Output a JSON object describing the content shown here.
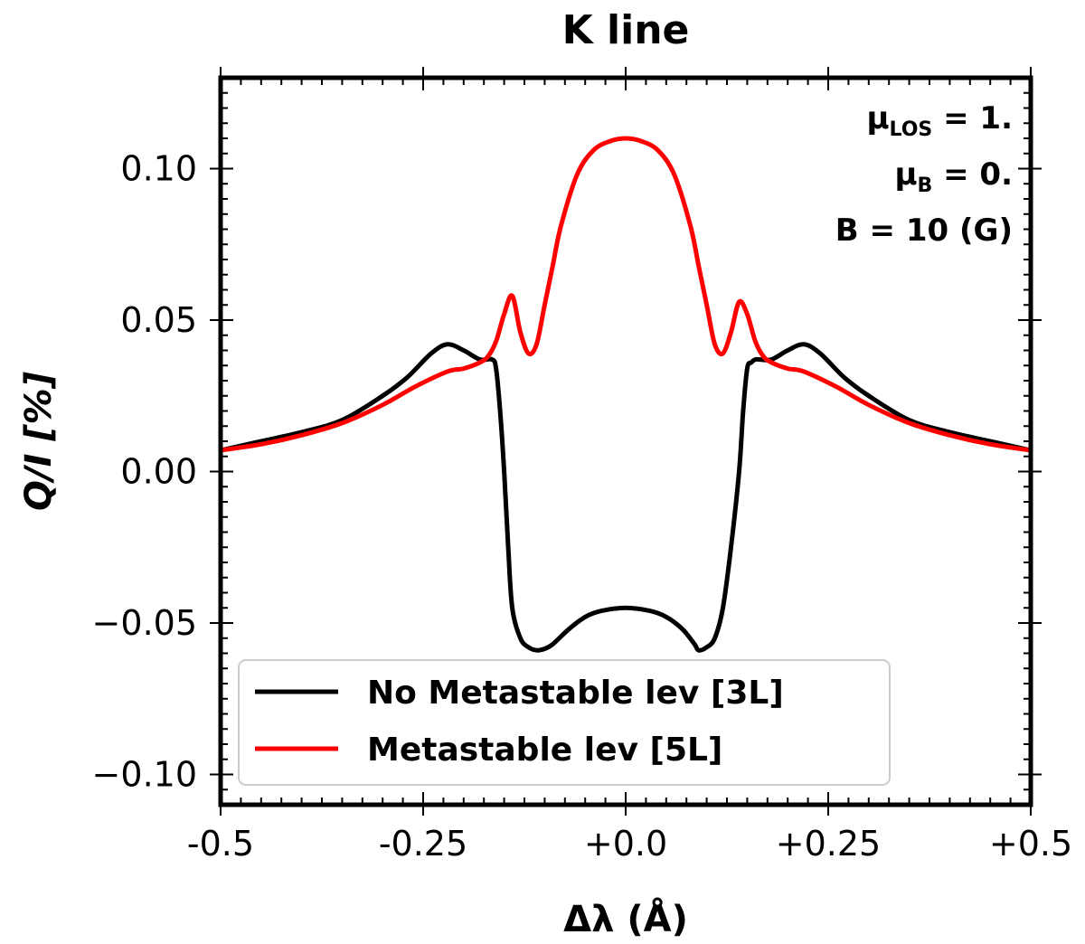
{
  "chart_data": {
    "type": "line",
    "title": "K line",
    "xlabel": "Δλ (Å)",
    "ylabel": "Q/I [%]",
    "xlim": [
      -0.5,
      0.5
    ],
    "ylim": [
      -0.11,
      0.13
    ],
    "x_ticks": [
      {
        "value": -0.5,
        "label": "-0.5"
      },
      {
        "value": -0.25,
        "label": "-0.25"
      },
      {
        "value": 0.0,
        "label": "+0.0"
      },
      {
        "value": 0.25,
        "label": "+0.25"
      },
      {
        "value": 0.5,
        "label": "+0.5"
      }
    ],
    "y_ticks": [
      {
        "value": 0.1,
        "label": "0.10"
      },
      {
        "value": 0.05,
        "label": "0.05"
      },
      {
        "value": 0.0,
        "label": "0.00"
      },
      {
        "value": -0.05,
        "label": "−0.05"
      },
      {
        "value": -0.1,
        "label": "−0.10"
      }
    ],
    "annotations": {
      "mu_los": {
        "base": "μ",
        "sub": "LOS",
        "rest": " = 1."
      },
      "mu_b": {
        "base": "μ",
        "sub": "B",
        "rest": " = 0."
      },
      "field": "B = 10 (G)"
    },
    "legend_position": "lower-left",
    "series": [
      {
        "name": "No Metastable lev [3L]",
        "color": "#000000",
        "x": [
          -0.5,
          -0.45,
          -0.4,
          -0.35,
          -0.3,
          -0.27,
          -0.24,
          -0.22,
          -0.2,
          -0.18,
          -0.165,
          -0.16,
          -0.155,
          -0.15,
          -0.145,
          -0.14,
          -0.13,
          -0.12,
          -0.11,
          -0.1,
          -0.09,
          -0.07,
          -0.05,
          -0.03,
          0.0,
          0.03,
          0.05,
          0.07,
          0.085,
          0.09,
          0.1,
          0.11,
          0.12,
          0.13,
          0.14,
          0.145,
          0.15,
          0.155,
          0.16,
          0.165,
          0.18,
          0.2,
          0.22,
          0.24,
          0.27,
          0.3,
          0.35,
          0.4,
          0.45,
          0.5
        ],
        "y": [
          0.007,
          0.01,
          0.013,
          0.017,
          0.025,
          0.031,
          0.039,
          0.042,
          0.04,
          0.037,
          0.037,
          0.034,
          0.02,
          0.0,
          -0.025,
          -0.045,
          -0.055,
          -0.058,
          -0.059,
          -0.0585,
          -0.057,
          -0.052,
          -0.048,
          -0.046,
          -0.045,
          -0.046,
          -0.048,
          -0.052,
          -0.057,
          -0.059,
          -0.058,
          -0.055,
          -0.045,
          -0.025,
          0.0,
          0.02,
          0.034,
          0.036,
          0.037,
          0.037,
          0.037,
          0.04,
          0.042,
          0.039,
          0.031,
          0.025,
          0.017,
          0.013,
          0.01,
          0.007
        ]
      },
      {
        "name": "Metastable lev [5L]",
        "color": "#ff0000",
        "x": [
          -0.5,
          -0.45,
          -0.4,
          -0.35,
          -0.3,
          -0.26,
          -0.22,
          -0.2,
          -0.18,
          -0.17,
          -0.16,
          -0.15,
          -0.14,
          -0.13,
          -0.12,
          -0.11,
          -0.1,
          -0.09,
          -0.08,
          -0.06,
          -0.04,
          -0.02,
          0.0,
          0.02,
          0.04,
          0.06,
          0.08,
          0.09,
          0.1,
          0.11,
          0.12,
          0.13,
          0.14,
          0.15,
          0.16,
          0.17,
          0.18,
          0.2,
          0.22,
          0.26,
          0.3,
          0.35,
          0.4,
          0.45,
          0.5
        ],
        "y": [
          0.007,
          0.009,
          0.012,
          0.016,
          0.022,
          0.028,
          0.033,
          0.034,
          0.036,
          0.038,
          0.043,
          0.052,
          0.058,
          0.046,
          0.039,
          0.042,
          0.055,
          0.068,
          0.081,
          0.098,
          0.106,
          0.109,
          0.11,
          0.109,
          0.106,
          0.098,
          0.081,
          0.068,
          0.055,
          0.042,
          0.039,
          0.046,
          0.056,
          0.052,
          0.043,
          0.038,
          0.036,
          0.034,
          0.033,
          0.028,
          0.022,
          0.016,
          0.012,
          0.009,
          0.007
        ]
      }
    ]
  }
}
